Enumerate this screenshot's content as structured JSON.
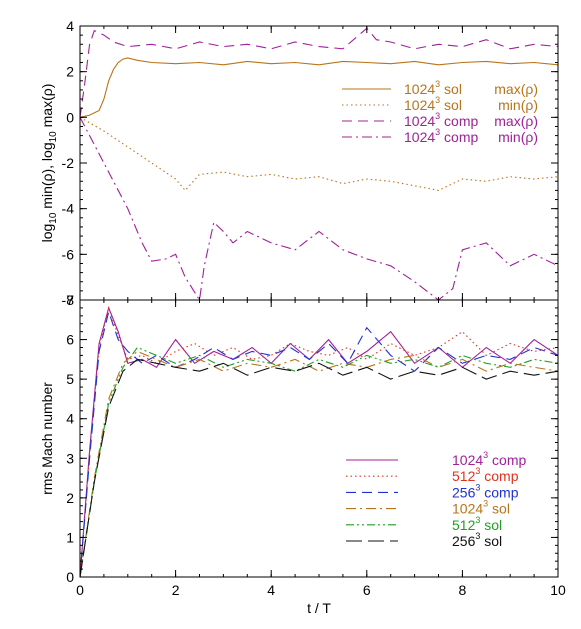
{
  "chart_data": [
    {
      "type": "line",
      "xlabel": "",
      "ylabel": "log10 min(ρ), log10 max(ρ)",
      "ylabel_parts": {
        "a": "log",
        "sub1": "10",
        "b": " min(ρ), log",
        "sub2": "10",
        "c": " max(ρ)"
      },
      "xlim": [
        0,
        10
      ],
      "ylim": [
        -8,
        4
      ],
      "yticks": [
        4,
        2,
        0,
        -2,
        -4,
        -6,
        -8
      ],
      "legend_position": "upper-right",
      "series": [
        {
          "name": "1024³ sol max(ρ)",
          "label_res": "1024",
          "label_sup": "3",
          "label_kind": "sol",
          "label_stat": "max(ρ)",
          "color": "#b8741a",
          "dash": "solid",
          "x": [
            0,
            0.2,
            0.4,
            0.5,
            0.6,
            0.7,
            0.8,
            0.9,
            1.0,
            1.2,
            1.5,
            2,
            2.5,
            3,
            3.5,
            4,
            4.5,
            5,
            5.5,
            6,
            6.5,
            7,
            7.5,
            8,
            8.5,
            9,
            9.5,
            10
          ],
          "y": [
            0,
            0.1,
            0.3,
            0.8,
            1.6,
            2.1,
            2.4,
            2.55,
            2.6,
            2.5,
            2.4,
            2.35,
            2.4,
            2.3,
            2.45,
            2.35,
            2.4,
            2.3,
            2.45,
            2.4,
            2.35,
            2.45,
            2.3,
            2.4,
            2.45,
            2.35,
            2.4,
            2.3
          ]
        },
        {
          "name": "1024³ sol min(ρ)",
          "label_res": "1024",
          "label_sup": "3",
          "label_kind": "sol",
          "label_stat": "min(ρ)",
          "color": "#b8741a",
          "dash": "dot",
          "x": [
            0,
            0.5,
            1.0,
            1.5,
            2.0,
            2.2,
            2.5,
            3.0,
            3.5,
            4.0,
            4.5,
            5.0,
            5.5,
            6.0,
            6.5,
            7.0,
            7.5,
            8.0,
            8.5,
            9.0,
            9.5,
            10
          ],
          "y": [
            0,
            -0.6,
            -1.3,
            -2.0,
            -2.7,
            -3.2,
            -2.5,
            -2.4,
            -2.6,
            -2.5,
            -2.7,
            -2.6,
            -2.9,
            -2.7,
            -2.8,
            -3.0,
            -3.2,
            -2.7,
            -2.8,
            -2.6,
            -2.7,
            -2.6
          ]
        },
        {
          "name": "1024³ comp max(ρ)",
          "label_res": "1024",
          "label_sup": "3",
          "label_kind": "comp",
          "label_stat": "max(ρ)",
          "color": "#a0209a",
          "dash": "dash",
          "x": [
            0,
            0.1,
            0.2,
            0.3,
            0.4,
            0.5,
            0.7,
            1.0,
            1.5,
            2,
            2.5,
            3,
            3.5,
            4,
            4.5,
            5,
            5.5,
            6,
            6.2,
            6.5,
            7,
            7.5,
            8,
            8.5,
            9,
            9.5,
            10
          ],
          "y": [
            0,
            1.5,
            3.2,
            3.8,
            3.7,
            3.6,
            3.3,
            3.1,
            3.2,
            3.0,
            3.3,
            3.1,
            3.2,
            3.0,
            3.3,
            3.1,
            3.0,
            3.9,
            3.4,
            3.3,
            3.0,
            3.2,
            3.1,
            3.4,
            3.0,
            3.2,
            3.1
          ]
        },
        {
          "name": "1024³ comp min(ρ)",
          "label_res": "1024",
          "label_sup": "3",
          "label_kind": "comp",
          "label_stat": "min(ρ)",
          "color": "#a0209a",
          "dash": "dashdot",
          "x": [
            0,
            0.5,
            1.0,
            1.3,
            1.5,
            1.8,
            2.0,
            2.2,
            2.5,
            2.6,
            2.8,
            3.0,
            3.2,
            3.5,
            4.0,
            4.5,
            5.0,
            5.5,
            6.0,
            6.5,
            7.0,
            7.5,
            7.8,
            8.0,
            8.5,
            9.0,
            9.5,
            10
          ],
          "y": [
            0,
            -2.0,
            -4.0,
            -5.5,
            -6.3,
            -6.2,
            -6.0,
            -7.0,
            -8.0,
            -6.5,
            -4.6,
            -5.0,
            -5.5,
            -5.0,
            -5.5,
            -5.8,
            -5.0,
            -5.8,
            -6.2,
            -6.5,
            -7.2,
            -8.0,
            -7.5,
            -5.8,
            -5.5,
            -6.5,
            -6.0,
            -6.5
          ]
        }
      ]
    },
    {
      "type": "line",
      "xlabel": "t / T",
      "ylabel": "rms Mach number",
      "xlim": [
        0,
        10
      ],
      "ylim": [
        0,
        7
      ],
      "xticks": [
        0,
        2,
        4,
        6,
        8,
        10
      ],
      "yticks": [
        0,
        1,
        2,
        3,
        4,
        5,
        6,
        7
      ],
      "legend_position": "lower-right",
      "series": [
        {
          "name": "1024³ comp",
          "label_res": "1024",
          "label_sup": "3",
          "label_kind": "comp",
          "color": "#a0209a",
          "dash": "solid",
          "x": [
            0,
            0.2,
            0.4,
            0.6,
            0.8,
            1.0,
            1.3,
            1.6,
            2.0,
            2.4,
            2.8,
            3.2,
            3.6,
            4.0,
            4.4,
            4.8,
            5.2,
            5.6,
            6.0,
            6.5,
            7.0,
            7.5,
            8.0,
            8.5,
            9.0,
            9.5,
            10
          ],
          "y": [
            0,
            3.2,
            5.9,
            6.8,
            6.2,
            5.4,
            5.5,
            5.3,
            6.0,
            5.4,
            5.7,
            5.5,
            5.8,
            5.4,
            5.9,
            5.5,
            6.0,
            5.4,
            5.7,
            6.2,
            5.4,
            5.8,
            5.3,
            5.8,
            5.4,
            6.0,
            5.6
          ]
        },
        {
          "name": "512³ comp",
          "label_res": "512",
          "label_sup": "3",
          "label_kind": "comp",
          "color": "#e03020",
          "dash": "dot",
          "x": [
            0,
            0.2,
            0.4,
            0.6,
            0.8,
            1.0,
            1.3,
            1.6,
            2.0,
            2.4,
            2.8,
            3.2,
            3.6,
            4.0,
            4.4,
            4.8,
            5.2,
            5.6,
            6.0,
            6.5,
            7.0,
            7.5,
            8.0,
            8.5,
            9.0,
            9.5,
            10
          ],
          "y": [
            0,
            3.1,
            5.8,
            6.8,
            6.1,
            5.5,
            5.6,
            5.4,
            5.7,
            5.9,
            5.6,
            5.8,
            5.5,
            5.6,
            5.9,
            5.7,
            5.6,
            5.8,
            5.5,
            5.9,
            5.6,
            5.8,
            6.2,
            5.6,
            5.9,
            5.7,
            5.8
          ]
        },
        {
          "name": "256³ comp",
          "label_res": "256",
          "label_sup": "3",
          "label_kind": "comp",
          "color": "#2030d0",
          "dash": "dash",
          "x": [
            0,
            0.2,
            0.4,
            0.6,
            0.8,
            1.0,
            1.3,
            1.6,
            2.0,
            2.4,
            2.8,
            3.2,
            3.6,
            4.0,
            4.4,
            4.8,
            5.2,
            5.6,
            6.0,
            6.5,
            7.0,
            7.5,
            8.0,
            8.5,
            9.0,
            9.5,
            10
          ],
          "y": [
            0,
            3.0,
            5.7,
            6.7,
            6.0,
            5.7,
            5.4,
            5.6,
            5.3,
            5.5,
            5.8,
            5.5,
            5.7,
            5.6,
            5.8,
            5.5,
            5.9,
            5.4,
            6.3,
            5.6,
            5.2,
            5.8,
            5.4,
            5.6,
            5.5,
            5.8,
            5.6
          ]
        },
        {
          "name": "1024³ sol",
          "label_res": "1024",
          "label_sup": "3",
          "label_kind": "sol",
          "color": "#b8741a",
          "dash": "dashdot",
          "x": [
            0,
            0.3,
            0.6,
            0.9,
            1.2,
            1.6,
            2.0,
            2.5,
            3.0,
            3.5,
            4.0,
            4.5,
            5.0,
            5.5,
            6.0,
            6.5,
            7.0,
            7.5,
            8.0,
            8.5,
            9.0,
            9.5,
            10
          ],
          "y": [
            0,
            2.5,
            4.5,
            5.4,
            5.7,
            5.5,
            5.3,
            5.5,
            5.2,
            5.4,
            5.3,
            5.5,
            5.2,
            5.4,
            5.3,
            5.5,
            5.6,
            5.3,
            5.5,
            5.2,
            5.4,
            5.3,
            5.2
          ]
        },
        {
          "name": "512³ sol",
          "label_res": "512",
          "label_sup": "3",
          "label_kind": "sol",
          "color": "#20a020",
          "dash": "dashdot3",
          "x": [
            0,
            0.3,
            0.6,
            0.9,
            1.2,
            1.6,
            2.0,
            2.5,
            3.0,
            3.5,
            4.0,
            4.5,
            5.0,
            5.5,
            6.0,
            6.5,
            7.0,
            7.5,
            8.0,
            8.5,
            9.0,
            9.5,
            10
          ],
          "y": [
            0,
            2.4,
            4.4,
            5.3,
            5.8,
            5.6,
            5.4,
            5.6,
            5.3,
            5.5,
            5.4,
            5.2,
            5.5,
            5.3,
            5.6,
            5.4,
            5.5,
            5.3,
            5.6,
            5.4,
            5.3,
            5.5,
            5.4
          ]
        },
        {
          "name": "256³ sol",
          "label_res": "256",
          "label_sup": "3",
          "label_kind": "sol",
          "color": "#111111",
          "dash": "longdash",
          "x": [
            0,
            0.3,
            0.6,
            0.9,
            1.2,
            1.6,
            2.0,
            2.5,
            3.0,
            3.5,
            4.0,
            4.5,
            5.0,
            5.5,
            6.0,
            6.5,
            7.0,
            7.5,
            8.0,
            8.5,
            9.0,
            9.5,
            10
          ],
          "y": [
            0,
            2.4,
            4.3,
            5.2,
            5.5,
            5.4,
            5.3,
            5.2,
            5.4,
            5.1,
            5.3,
            5.2,
            5.4,
            5.1,
            5.3,
            5.0,
            5.2,
            5.1,
            5.3,
            5.0,
            5.2,
            5.1,
            5.2
          ]
        }
      ]
    }
  ]
}
